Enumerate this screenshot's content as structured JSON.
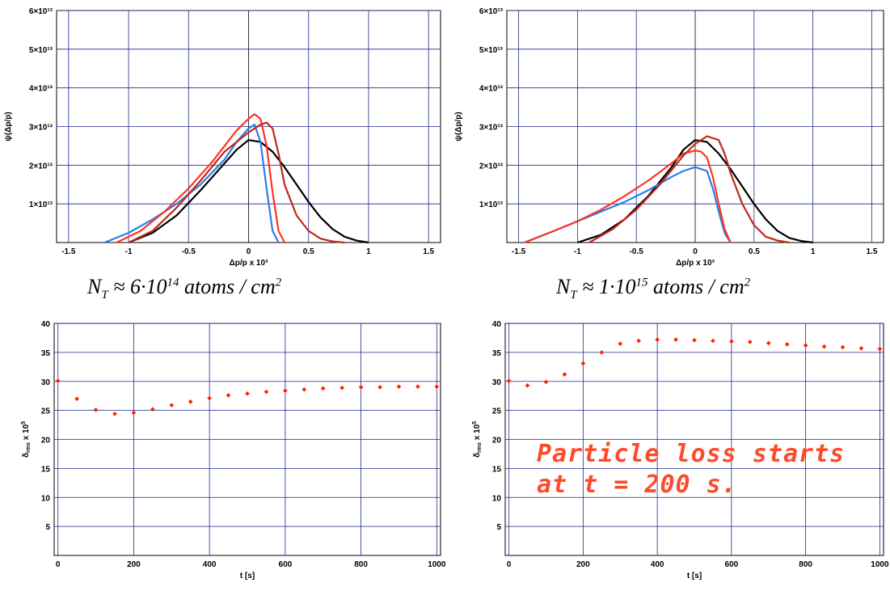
{
  "chart_data": [
    {
      "type": "line",
      "title": "",
      "xlabel": "Δp/p x 10³",
      "ylabel": "ψ(Δp/p)",
      "xlim": [
        -1.6,
        1.6
      ],
      "ylim": [
        0,
        60000000000000.0
      ],
      "x_ticks": [
        -1.5,
        -1,
        -0.5,
        0,
        0.5,
        1,
        1.5
      ],
      "x_tick_labels": [
        "-1.5",
        "-1",
        "-0.5",
        "0",
        "0.5",
        "1",
        "1.5"
      ],
      "y_ticks": [
        10000000000000.0,
        20000000000000.0,
        30000000000000.0,
        40000000000000.0,
        50000000000000.0,
        60000000000000.0
      ],
      "y_tick_labels": [
        "1×10¹³",
        "2×10¹³",
        "3×10¹³",
        "4×10¹³",
        "5×10¹³",
        "6×10¹³"
      ],
      "grid": true,
      "series": [
        {
          "color": "#000000",
          "x": [
            -1.0,
            -0.8,
            -0.6,
            -0.4,
            -0.2,
            -0.1,
            0.0,
            0.1,
            0.2,
            0.3,
            0.4,
            0.5,
            0.6,
            0.7,
            0.8,
            0.9,
            1.0
          ],
          "y": [
            0,
            2500000000000.0,
            7000000000000.0,
            13500000000000.0,
            20500000000000.0,
            24000000000000.0,
            26500000000000.0,
            26000000000000.0,
            23500000000000.0,
            19500000000000.0,
            15000000000000.0,
            10500000000000.0,
            6500000000000.0,
            3500000000000.0,
            1500000000000.0,
            500000000000.0,
            0
          ]
        },
        {
          "color": "#2a7ee8",
          "x": [
            -1.2,
            -1.0,
            -0.8,
            -0.6,
            -0.4,
            -0.2,
            -0.1,
            0.0,
            0.05,
            0.1,
            0.15,
            0.2,
            0.25
          ],
          "y": [
            0,
            2500000000000.0,
            6000000000000.0,
            10000000000000.0,
            15000000000000.0,
            21500000000000.0,
            26000000000000.0,
            29500000000000.0,
            30500000000000.0,
            26000000000000.0,
            14000000000000.0,
            3000000000000.0,
            0
          ]
        },
        {
          "color": "#ff3322",
          "x": [
            -1.1,
            -0.9,
            -0.7,
            -0.5,
            -0.3,
            -0.1,
            0.0,
            0.05,
            0.1,
            0.15,
            0.2,
            0.25,
            0.3
          ],
          "y": [
            0,
            3000000000000.0,
            8000000000000.0,
            14000000000000.0,
            21000000000000.0,
            29000000000000.0,
            32000000000000.0,
            33200000000000.0,
            32000000000000.0,
            25000000000000.0,
            13000000000000.0,
            3000000000000.0,
            0
          ]
        },
        {
          "color": "#c0281a",
          "x": [
            -1.0,
            -0.8,
            -0.6,
            -0.4,
            -0.2,
            0.0,
            0.1,
            0.15,
            0.2,
            0.25,
            0.3,
            0.4,
            0.5,
            0.6,
            0.7,
            0.8
          ],
          "y": [
            0,
            3000000000000.0,
            9000000000000.0,
            16000000000000.0,
            23500000000000.0,
            28500000000000.0,
            30500000000000.0,
            31000000000000.0,
            29500000000000.0,
            23000000000000.0,
            15000000000000.0,
            7000000000000.0,
            3000000000000.0,
            1000000000000.0,
            300000000000.0,
            0
          ]
        }
      ]
    },
    {
      "type": "line",
      "title": "",
      "xlabel": "Δp/p x 10³",
      "ylabel": "ψ(Δp/p)",
      "xlim": [
        -1.6,
        1.6
      ],
      "ylim": [
        0,
        60000000000000.0
      ],
      "x_ticks": [
        -1.5,
        -1,
        -0.5,
        0,
        0.5,
        1,
        1.5
      ],
      "x_tick_labels": [
        "-1.5",
        "-1",
        "-0.5",
        "0",
        "0.5",
        "1",
        "1.5"
      ],
      "y_ticks": [
        10000000000000.0,
        20000000000000.0,
        30000000000000.0,
        40000000000000.0,
        50000000000000.0,
        60000000000000.0
      ],
      "y_tick_labels": [
        "1×10¹³",
        "2×10¹³",
        "3×10¹³",
        "4×10¹³",
        "5×10¹³",
        "6×10¹³"
      ],
      "grid": true,
      "series": [
        {
          "color": "#000000",
          "x": [
            -1.0,
            -0.8,
            -0.6,
            -0.4,
            -0.2,
            -0.1,
            0.0,
            0.1,
            0.2,
            0.3,
            0.4,
            0.5,
            0.6,
            0.7,
            0.8,
            0.9,
            1.0
          ],
          "y": [
            0,
            2000000000000.0,
            6000000000000.0,
            12000000000000.0,
            19500000000000.0,
            24000000000000.0,
            26500000000000.0,
            26000000000000.0,
            23000000000000.0,
            19000000000000.0,
            14500000000000.0,
            10000000000000.0,
            6000000000000.0,
            3000000000000.0,
            1200000000000.0,
            400000000000.0,
            0
          ]
        },
        {
          "color": "#2a7ee8",
          "x": [
            -1.45,
            -1.2,
            -1.0,
            -0.8,
            -0.6,
            -0.4,
            -0.2,
            -0.1,
            0.0,
            0.1,
            0.15,
            0.2,
            0.25,
            0.3
          ],
          "y": [
            0,
            3000000000000.0,
            5500000000000.0,
            8000000000000.0,
            10500000000000.0,
            13500000000000.0,
            17000000000000.0,
            18500000000000.0,
            19500000000000.0,
            18500000000000.0,
            14000000000000.0,
            8000000000000.0,
            2500000000000.0,
            0
          ]
        },
        {
          "color": "#ff3322",
          "x": [
            -1.45,
            -1.2,
            -1.0,
            -0.8,
            -0.6,
            -0.4,
            -0.2,
            -0.1,
            0.0,
            0.05,
            0.1,
            0.15,
            0.2,
            0.25,
            0.3
          ],
          "y": [
            0,
            3000000000000.0,
            5500000000000.0,
            8500000000000.0,
            12000000000000.0,
            16000000000000.0,
            20500000000000.0,
            23000000000000.0,
            23800000000000.0,
            23500000000000.0,
            22000000000000.0,
            17000000000000.0,
            10000000000000.0,
            3500000000000.0,
            0
          ]
        },
        {
          "color": "#c0281a",
          "x": [
            -0.9,
            -0.7,
            -0.5,
            -0.3,
            -0.1,
            0.0,
            0.1,
            0.2,
            0.25,
            0.3,
            0.4,
            0.5,
            0.6,
            0.7,
            0.8
          ],
          "y": [
            0,
            3500000000000.0,
            8500000000000.0,
            15000000000000.0,
            22500000000000.0,
            25500000000000.0,
            27500000000000.0,
            26500000000000.0,
            23000000000000.0,
            18000000000000.0,
            10000000000000.0,
            4500000000000.0,
            1500000000000.0,
            500000000000.0,
            0
          ]
        }
      ]
    },
    {
      "type": "scatter",
      "title": "",
      "xlabel": "t [s]",
      "ylabel": "δrms x 10⁵",
      "ylabel_main": "δ",
      "ylabel_sub": "rms",
      "ylabel_rest": " x 10",
      "ylabel_sup": "5",
      "xlim": [
        -10,
        1010
      ],
      "ylim": [
        0,
        40
      ],
      "x_ticks": [
        0,
        200,
        400,
        600,
        800,
        1000
      ],
      "x_tick_labels": [
        "0",
        "200",
        "400",
        "600",
        "800",
        "1000"
      ],
      "y_ticks": [
        5,
        10,
        15,
        20,
        25,
        30,
        35,
        40
      ],
      "y_tick_labels": [
        "5",
        "10",
        "15",
        "20",
        "25",
        "30",
        "35",
        "40"
      ],
      "grid": true,
      "series": [
        {
          "color": "#ff2200",
          "x": [
            0,
            50,
            100,
            150,
            200,
            250,
            300,
            350,
            400,
            450,
            500,
            550,
            600,
            650,
            700,
            750,
            800,
            850,
            900,
            950,
            1000
          ],
          "y": [
            30.1,
            27.0,
            25.1,
            24.4,
            24.6,
            25.2,
            25.9,
            26.5,
            27.1,
            27.6,
            27.9,
            28.2,
            28.4,
            28.6,
            28.8,
            28.9,
            29.0,
            29.0,
            29.1,
            29.1,
            29.1
          ]
        }
      ]
    },
    {
      "type": "scatter",
      "title": "",
      "xlabel": "t [s]",
      "ylabel": "δrms x 10⁵",
      "ylabel_main": "δ",
      "ylabel_sub": "rms",
      "ylabel_rest": " x 10",
      "ylabel_sup": "5",
      "xlim": [
        -10,
        1010
      ],
      "ylim": [
        0,
        40
      ],
      "x_ticks": [
        0,
        200,
        400,
        600,
        800,
        1000
      ],
      "x_tick_labels": [
        "0",
        "200",
        "400",
        "600",
        "800",
        "1000"
      ],
      "y_ticks": [
        5,
        10,
        15,
        20,
        25,
        30,
        35,
        40
      ],
      "y_tick_labels": [
        "5",
        "10",
        "15",
        "20",
        "25",
        "30",
        "35",
        "40"
      ],
      "grid": true,
      "series": [
        {
          "color": "#ff2200",
          "x": [
            0,
            50,
            100,
            150,
            200,
            250,
            300,
            350,
            400,
            450,
            500,
            550,
            600,
            650,
            700,
            750,
            800,
            850,
            900,
            950,
            1000
          ],
          "y": [
            30.1,
            29.3,
            29.9,
            31.2,
            33.1,
            35.0,
            36.5,
            37.0,
            37.2,
            37.2,
            37.1,
            37.0,
            36.9,
            36.8,
            36.6,
            36.4,
            36.2,
            36.0,
            35.9,
            35.7,
            35.6
          ]
        }
      ]
    }
  ],
  "captions": {
    "left": {
      "n": "N",
      "n_sub": "T",
      "approx": " ≈ 6·10",
      "exp": "14",
      "units": " atoms / cm",
      "units_sup": "2"
    },
    "right": {
      "n": "N",
      "n_sub": "T",
      "approx": " ≈ 1·10",
      "exp": "15",
      "units": " atoms / cm",
      "units_sup": "2"
    }
  },
  "annotation": {
    "line1": "Particle loss starts",
    "line2": "at t = 200 s."
  }
}
